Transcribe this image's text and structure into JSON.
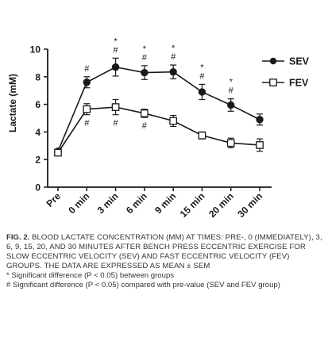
{
  "chart_data": {
    "type": "line",
    "ylabel": "Lactate (mM)",
    "xlabel": "",
    "ylim": [
      0,
      10
    ],
    "yticks": [
      0,
      2,
      4,
      6,
      8,
      10
    ],
    "categories": [
      "Pre",
      "0 min",
      "3 min",
      "6 min",
      "9 min",
      "15 min",
      "20 min",
      "30 min"
    ],
    "legend_position": "top-right",
    "grid": false,
    "series": [
      {
        "name": "SEV",
        "marker": "filled-circle",
        "values": [
          2.6,
          7.6,
          8.7,
          8.3,
          8.35,
          6.9,
          5.95,
          4.9
        ],
        "errors": [
          0.15,
          0.4,
          0.65,
          0.5,
          0.5,
          0.55,
          0.45,
          0.4
        ]
      },
      {
        "name": "FEV",
        "marker": "open-square",
        "values": [
          2.5,
          5.65,
          5.8,
          5.35,
          4.8,
          3.75,
          3.2,
          3.05
        ],
        "errors": [
          0.15,
          0.4,
          0.55,
          0.3,
          0.4,
          0.25,
          0.35,
          0.45
        ]
      }
    ],
    "annotations": [
      {
        "series": "SEV",
        "index": 1,
        "position": "above",
        "text": "#"
      },
      {
        "series": "SEV",
        "index": 2,
        "position": "above",
        "text": "*\n#"
      },
      {
        "series": "SEV",
        "index": 3,
        "position": "above",
        "text": "*\n#"
      },
      {
        "series": "SEV",
        "index": 4,
        "position": "above",
        "text": "*\n#"
      },
      {
        "series": "SEV",
        "index": 5,
        "position": "above",
        "text": "*\n#"
      },
      {
        "series": "SEV",
        "index": 6,
        "position": "above",
        "text": "*\n#"
      },
      {
        "series": "FEV",
        "index": 1,
        "position": "below",
        "text": "#"
      },
      {
        "series": "FEV",
        "index": 2,
        "position": "below",
        "text": "#"
      },
      {
        "series": "FEV",
        "index": 3,
        "position": "below",
        "text": "#"
      }
    ]
  },
  "caption": {
    "label": "FIG. 2.",
    "text": "Blood lactate concentration (mM) at times: Pre-, 0 (immediately), 3, 6, 9, 15, 20, and 30 minutes after bench press eccentric exercise for slow eccentric velocity (SEV) and fast eccentric velocity (FEV) groups. The data are expressed as mean ± SEM",
    "note1": "* Significant difference (P < 0.05) between groups",
    "note2": "# Significant difference (P < 0.05) compared with pre-value (SEV and FEV group)"
  },
  "colors": {
    "ink": "#1a1a1a",
    "caption_text": "#333333"
  }
}
